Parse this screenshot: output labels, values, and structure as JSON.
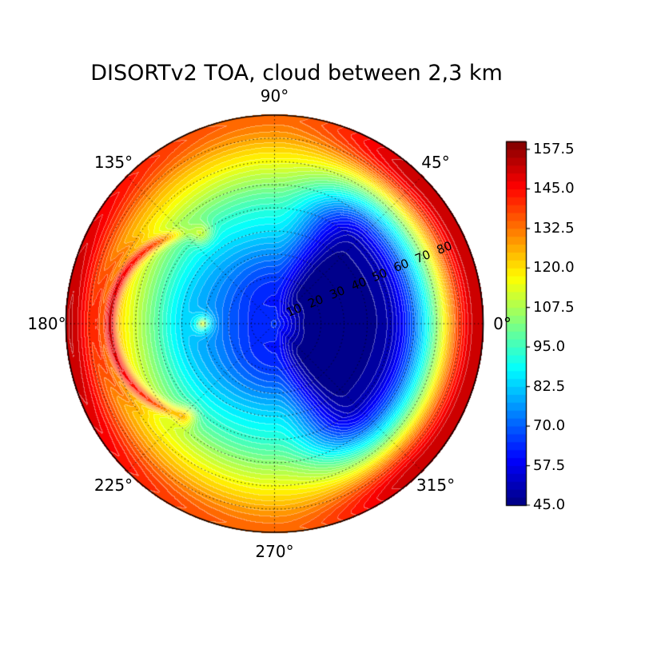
{
  "chart_data": {
    "type": "polar_contour",
    "title": "DISORTv2 TOA, cloud between 2,3 km",
    "colormap": "jet",
    "vmin": 45.0,
    "vmax": 160.0,
    "level_step": 2.5,
    "r_max_deg": 90,
    "radial_label_azimuth_deg": 22.5,
    "colorbar": {
      "tick_labels": [
        "157.5",
        "145.0",
        "132.5",
        "120.0",
        "107.5",
        "95.0",
        "82.5",
        "70.0",
        "57.5",
        "45.0"
      ],
      "tick_values": [
        157.5,
        145.0,
        132.5,
        120.0,
        107.5,
        95.0,
        82.5,
        70.0,
        57.5,
        45.0
      ]
    },
    "angular_ticks": [
      {
        "label": "0°",
        "deg": 0
      },
      {
        "label": "45°",
        "deg": 45
      },
      {
        "label": "90°",
        "deg": 90
      },
      {
        "label": "135°",
        "deg": 135
      },
      {
        "label": "180°",
        "deg": 180
      },
      {
        "label": "225°",
        "deg": 225
      },
      {
        "label": "270°",
        "deg": 270
      },
      {
        "label": "315°",
        "deg": 315
      }
    ],
    "radial_ticks": [
      {
        "label": "10",
        "deg": 10
      },
      {
        "label": "20",
        "deg": 20
      },
      {
        "label": "30",
        "deg": 30
      },
      {
        "label": "40",
        "deg": 40
      },
      {
        "label": "50",
        "deg": 50
      },
      {
        "label": "60",
        "deg": 60
      },
      {
        "label": "70",
        "deg": 70
      },
      {
        "label": "80",
        "deg": 80
      }
    ],
    "grid": {
      "ring_step_deg": 10,
      "spoke_step_deg": 45,
      "style": "dotted"
    },
    "antisolar_point": {
      "zenith_deg": 31,
      "azimuth_deg": 180
    },
    "field_model": {
      "description": "TOA radiance field: azimuthally blended radial profiles [zenith_deg, radiance] plus gaussian features (glory at antisolar point, cloudbow arc, dark forward minimum).",
      "profile_hold_deg": 45,
      "azimuth_profiles": {
        "az0": [
          [
            0,
            66
          ],
          [
            4,
            60
          ],
          [
            8,
            54
          ],
          [
            12,
            49
          ],
          [
            16,
            46
          ],
          [
            20,
            45.3
          ],
          [
            25,
            45
          ],
          [
            30,
            45
          ],
          [
            35,
            45.5
          ],
          [
            40,
            46.5
          ],
          [
            45,
            48
          ],
          [
            50,
            51
          ],
          [
            55,
            59
          ],
          [
            60,
            71
          ],
          [
            64,
            84
          ],
          [
            68,
            97
          ],
          [
            72,
            112
          ],
          [
            75,
            124
          ],
          [
            78,
            135
          ],
          [
            81,
            143
          ],
          [
            84,
            149
          ],
          [
            87,
            152
          ],
          [
            90,
            151
          ]
        ],
        "az90": [
          [
            0,
            66
          ],
          [
            5,
            63
          ],
          [
            10,
            62
          ],
          [
            15,
            63
          ],
          [
            20,
            66
          ],
          [
            25,
            70
          ],
          [
            30,
            75
          ],
          [
            35,
            80
          ],
          [
            40,
            85
          ],
          [
            45,
            89
          ],
          [
            50,
            93
          ],
          [
            55,
            98
          ],
          [
            60,
            104
          ],
          [
            65,
            110
          ],
          [
            70,
            116
          ],
          [
            75,
            121
          ],
          [
            80,
            127
          ],
          [
            84,
            131
          ],
          [
            88,
            134
          ],
          [
            90,
            133
          ]
        ],
        "az180": [
          [
            0,
            66
          ],
          [
            5,
            63
          ],
          [
            10,
            64
          ],
          [
            15,
            67
          ],
          [
            20,
            70
          ],
          [
            25,
            74
          ],
          [
            30,
            77
          ],
          [
            35,
            80
          ],
          [
            40,
            84
          ],
          [
            45,
            90
          ],
          [
            50,
            97
          ],
          [
            55,
            104
          ],
          [
            60,
            111
          ],
          [
            65,
            118
          ],
          [
            70,
            124
          ],
          [
            75,
            131
          ],
          [
            80,
            141
          ],
          [
            85,
            150
          ],
          [
            88,
            153
          ],
          [
            90,
            152
          ]
        ]
      },
      "features": [
        {
          "name": "glory-core",
          "type": "spot",
          "zenith": 31,
          "azimuth": 180,
          "amp": 20,
          "sigma": 1.6
        },
        {
          "name": "glory-halo",
          "type": "spot",
          "zenith": 31,
          "azimuth": 180,
          "amp": 16,
          "sigma": 4.5
        },
        {
          "name": "cloudbow-arc",
          "type": "ring",
          "zenith": 31,
          "azimuth": 180,
          "radius": 40,
          "sigma": 2.7,
          "amp": 26,
          "fade_full_deg": 55,
          "fade_zero_deg": 92
        },
        {
          "name": "cloudbow-outer-arc",
          "type": "ring",
          "zenith": 31,
          "azimuth": 180,
          "radius": 46,
          "sigma": 1.7,
          "amp": 7,
          "fade_full_deg": 40,
          "fade_zero_deg": 70
        },
        {
          "name": "cloudbow-end-upper",
          "type": "spot",
          "zenith": 50,
          "azimuth": 129,
          "amp": 15,
          "sigma": 4.5
        },
        {
          "name": "cloudbow-end-lower",
          "type": "spot",
          "zenith": 56,
          "azimuth": 226,
          "amp": 15,
          "sigma": 4.5
        },
        {
          "name": "forward-min-dimple-a",
          "type": "spot",
          "zenith": 16,
          "azimuth": 0,
          "amp": -2,
          "sigma": 5
        },
        {
          "name": "forward-min-dimple-b",
          "type": "spot",
          "zenith": 30,
          "azimuth": 5,
          "amp": -2,
          "sigma": 9
        }
      ]
    }
  },
  "colors": {
    "background": "#ffffff",
    "axes_border": "#000000",
    "grid": "#000000",
    "label_color": "#000000",
    "contour_line": "#ffffff",
    "contour_line_alpha": 0.38
  }
}
